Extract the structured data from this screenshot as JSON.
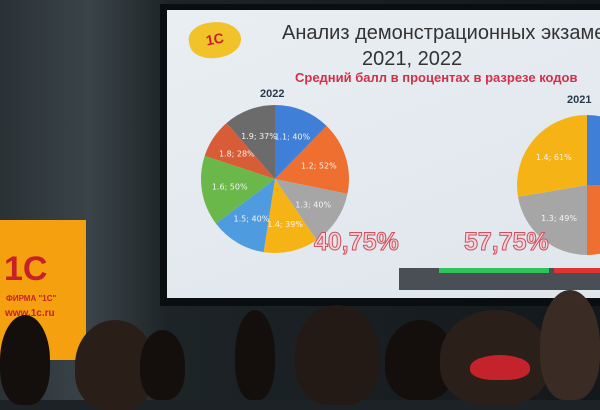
{
  "slide": {
    "title": "Анализ демонстрационных экзамен",
    "years": "2021, 2022",
    "subtitle": "Средний балл в процентах в разрезе кодов",
    "logo_text": "1С"
  },
  "chart_data": [
    {
      "type": "pie",
      "title": "2022",
      "average_label": "40,75%",
      "categories": [
        "1.1",
        "1.2",
        "1.3",
        "1.4",
        "1.5",
        "1.6",
        "1.8",
        "1.9"
      ],
      "values": [
        40,
        52,
        40,
        39,
        40,
        50,
        28,
        37
      ],
      "labels": [
        "1.1; 40%",
        "1.2; 52%",
        "1.3; 40%",
        "1.4; 39%",
        "1.5; 40%",
        "1.6; 50%",
        "1.8; 28%",
        "1.9; 37%"
      ],
      "colors": [
        "#3f7fd8",
        "#ee6f2f",
        "#a6a6a6",
        "#f5b316",
        "#4f9be0",
        "#6ab84a",
        "#d85d36",
        "#6b6b6b"
      ]
    },
    {
      "type": "pie",
      "title": "2021",
      "average_label": "57,75%",
      "categories": [
        "1.1",
        "1.2",
        "1.3",
        "1.4"
      ],
      "values": [
        null,
        null,
        49,
        61
      ],
      "labels": [
        "",
        "",
        "1.3; 49%",
        "1.4; 61%"
      ],
      "colors": [
        "#3f7fd8",
        "#ee6f2f",
        "#a6a6a6",
        "#f5b316"
      ]
    }
  ],
  "banner": {
    "logo_text": "1С",
    "firm": "ФИРМА \"1С\"",
    "url": "www.1c.ru"
  }
}
